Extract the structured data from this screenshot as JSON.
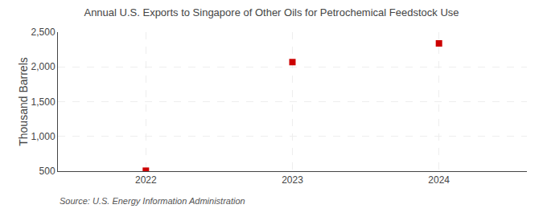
{
  "chart_data": {
    "type": "scatter",
    "title": "Annual U.S. Exports to Singapore of Other Oils for Petrochemical Feedstock Use",
    "ylabel": "Thousand Barrels",
    "annotations": [
      "Source: U.S. Energy Information Administration"
    ],
    "x": [
      2022,
      2023,
      2024
    ],
    "values": [
      507,
      2069,
      2338
    ],
    "color": "#cc0000",
    "marker": "square",
    "xlim": [
      2021.4,
      2024.6
    ],
    "xticks": [
      2022,
      2023,
      2024
    ],
    "ylim": [
      500,
      2500
    ],
    "yticks": [
      500,
      {
        "value": 1000,
        "label": "1,000"
      },
      {
        "value": 1500,
        "label": "1,500"
      },
      {
        "value": 2000,
        "label": "2,000"
      },
      {
        "value": 2500,
        "label": "2,500"
      }
    ],
    "grid": true
  }
}
